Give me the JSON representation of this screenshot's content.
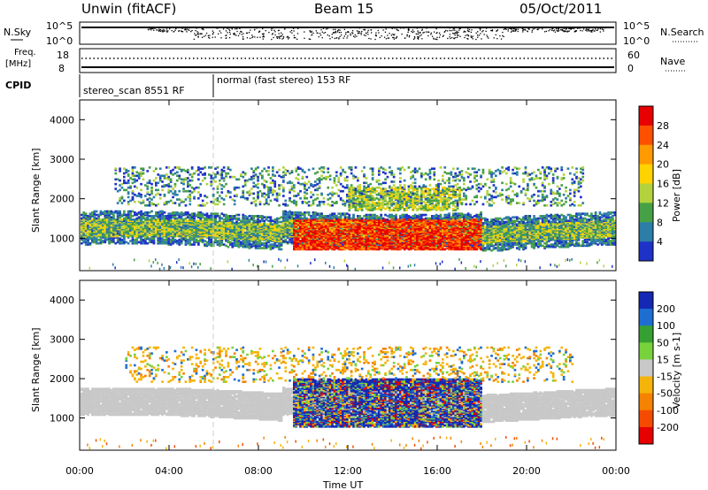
{
  "header": {
    "station": "Unwin (fitACF)",
    "beam": "Beam 15",
    "date": "05/Oct/2011"
  },
  "strips": {
    "nsky_label": "N.Sky",
    "nsearch_label": "N.Search",
    "nsky_ticks": [
      "10^5",
      "10^0"
    ],
    "nsearch_ticks": [
      "10^5",
      "10^0"
    ],
    "freq_label": "Freq.",
    "freq_unit": "[MHz]",
    "freq_ticks": [
      "18",
      "8"
    ],
    "nave_label": "Nave",
    "nave_ticks": [
      "60",
      "0"
    ],
    "cpid_label": "CPID",
    "cpid_segments": [
      "stereo_scan 8551 RF",
      "normal (fast stereo) 153 RF"
    ]
  },
  "power_panel": {
    "ylabel": "Slant Range [km]",
    "cbar_label": "Power [dB]",
    "cbar_ticks": [
      "28",
      "24",
      "20",
      "16",
      "12",
      "8",
      "4"
    ],
    "cbar_colors": [
      "#e80000",
      "#ff5000",
      "#ff9a00",
      "#ffd200",
      "#b4d23c",
      "#46a046",
      "#2c7da8",
      "#1e32c8"
    ]
  },
  "velocity_panel": {
    "ylabel": "Slant Range [km]",
    "cbar_label": "Velocity [m s-1]",
    "cbar_ticks": [
      "200",
      "100",
      "50",
      "15",
      "-15",
      "-50",
      "-100",
      "-200"
    ],
    "cbar_colors": [
      "#1428b4",
      "#1e6ed2",
      "#37a032",
      "#78d23c",
      "#c8c8c8",
      "#f5b40a",
      "#f58200",
      "#f54b00",
      "#e60000"
    ]
  },
  "axes": {
    "xlabel": "Time UT",
    "x_ticks": [
      "00:00",
      "04:00",
      "08:00",
      "12:00",
      "16:00",
      "20:00",
      "00:00"
    ],
    "y_ticks": [
      "4000",
      "3000",
      "2000",
      "1000"
    ]
  },
  "chart_data": {
    "type": "heatmap",
    "title": "Unwin (fitACF) Beam 15 05/Oct/2011",
    "xlabel": "Time UT",
    "ylabel": "Slant Range [km]",
    "xlim_hours": [
      0,
      24
    ],
    "ylim_km": [
      180,
      4500
    ],
    "panels": [
      {
        "name": "Power [dB]",
        "range": [
          0,
          30
        ],
        "features": [
          {
            "desc": "main scatter band",
            "hours": [
              0,
              24
            ],
            "range_km_center": [
              1100,
              1300
            ],
            "value_db": 12
          },
          {
            "desc": "strong echo region",
            "hours": [
              10,
              18
            ],
            "range_km": [
              800,
              1400
            ],
            "value_db": 26
          },
          {
            "desc": "upper band",
            "hours": [
              2,
              22
            ],
            "range_km": [
              1800,
              2800
            ],
            "value_db": 6
          }
        ]
      },
      {
        "name": "Velocity [m s-1]",
        "range": [
          -200,
          200
        ],
        "features": [
          {
            "desc": "ground scatter band",
            "hours": [
              0,
              24
            ],
            "range_km_center": [
              1000,
              1700
            ],
            "value_ms": 0
          },
          {
            "desc": "mixed flow region",
            "hours": [
              9,
              18
            ],
            "range_km": [
              800,
              2100
            ],
            "value_ms": 200
          },
          {
            "desc": "negative flow patches",
            "hours": [
              3,
              9
            ],
            "range_km": [
              2000,
              2800
            ],
            "value_ms": -80
          }
        ]
      }
    ]
  }
}
